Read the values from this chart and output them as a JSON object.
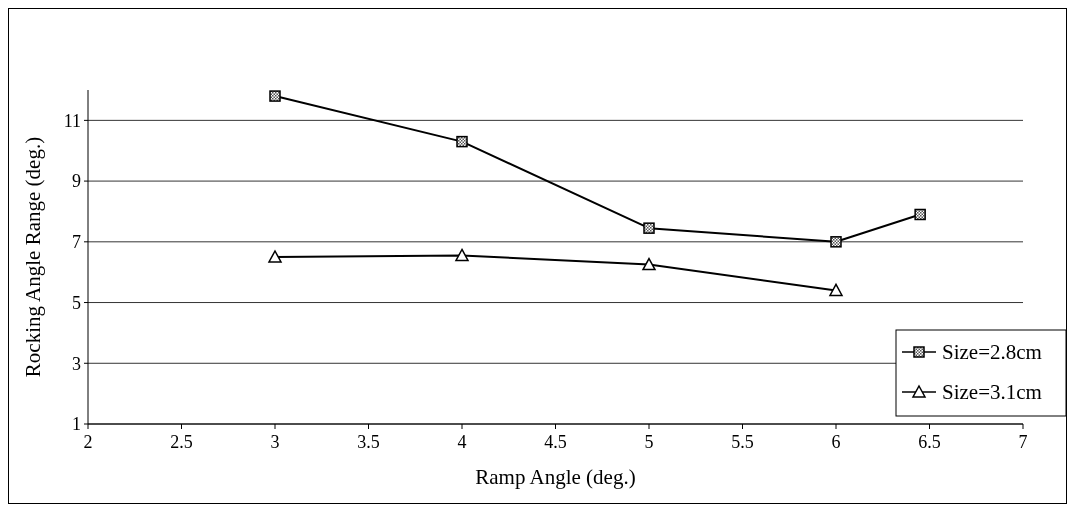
{
  "chart_data": {
    "type": "line",
    "xlabel": "Ramp Angle (deg.)",
    "ylabel": "Rocking Angle Range (deg.)",
    "xlim": [
      2,
      7
    ],
    "xticks": [
      2,
      2.5,
      3,
      3.5,
      4,
      4.5,
      5,
      5.5,
      6,
      6.5,
      7
    ],
    "ylim": [
      1,
      12
    ],
    "yticks": [
      1,
      3,
      5,
      7,
      9,
      11
    ],
    "grid": "y",
    "legend": "bottom right",
    "series": [
      {
        "name": "Size=2.8cm",
        "color": "#000000",
        "marker": "square",
        "x": [
          3,
          4,
          5,
          6,
          6.45
        ],
        "values": [
          11.8,
          10.3,
          7.45,
          7.0,
          7.9
        ]
      },
      {
        "name": "Size=3.1cm",
        "color": "#000000",
        "marker": "triangle",
        "x": [
          3,
          4,
          5,
          6
        ],
        "values": [
          6.5,
          6.55,
          6.25,
          5.4
        ]
      }
    ]
  }
}
